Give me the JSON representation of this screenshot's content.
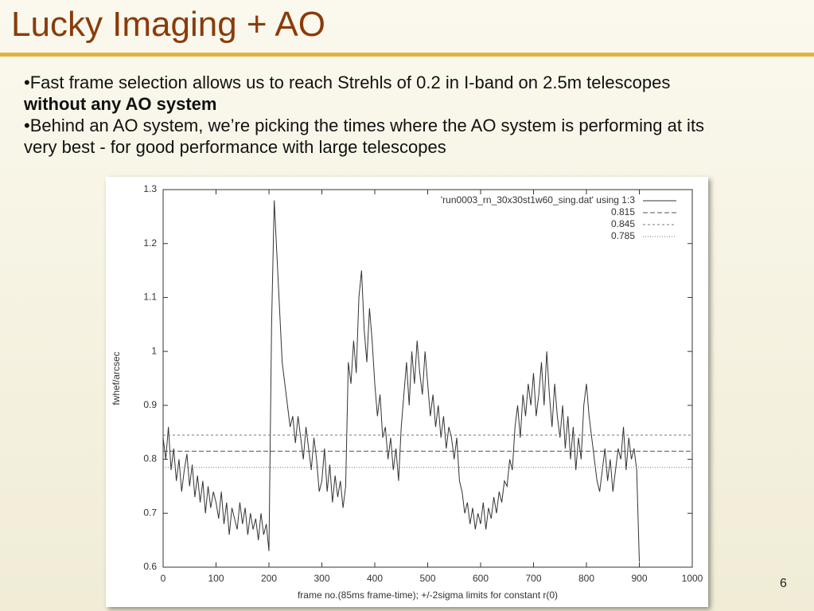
{
  "slide": {
    "title": "Lucky Imaging + AO",
    "page_number": "6",
    "bullets": [
      {
        "text": "Fast frame selection allows us to reach Strehls of 0.2 in I-band on 2.5m telescopes ",
        "bold": "without any AO system"
      },
      {
        "text": "Behind an AO system, we’re picking the times where the AO system is performing at its very best - for good performance with large telescopes"
      }
    ]
  },
  "chart_data": {
    "type": "line",
    "xlabel": "frame no.(85ms frame-time); +/-2sigma limits for constant r(0)",
    "ylabel": "fwhef/arcsec",
    "xlim": [
      0,
      1000
    ],
    "ylim": [
      0.6,
      1.3
    ],
    "xticks": [
      0,
      100,
      200,
      300,
      400,
      500,
      600,
      700,
      800,
      900,
      1000
    ],
    "yticks": [
      0.6,
      0.7,
      0.8,
      0.9,
      1,
      1.1,
      1.2,
      1.3
    ],
    "x": [
      0,
      5,
      10,
      15,
      20,
      25,
      30,
      35,
      40,
      45,
      50,
      55,
      60,
      65,
      70,
      75,
      80,
      85,
      90,
      95,
      100,
      105,
      110,
      115,
      120,
      125,
      130,
      135,
      140,
      145,
      150,
      155,
      160,
      165,
      170,
      175,
      180,
      185,
      190,
      195,
      200,
      205,
      210,
      215,
      220,
      225,
      230,
      235,
      240,
      245,
      250,
      255,
      260,
      265,
      270,
      275,
      280,
      285,
      290,
      295,
      300,
      305,
      310,
      315,
      320,
      325,
      330,
      335,
      340,
      345,
      350,
      355,
      360,
      365,
      370,
      375,
      380,
      385,
      390,
      395,
      400,
      405,
      410,
      415,
      420,
      425,
      430,
      435,
      440,
      445,
      450,
      455,
      460,
      465,
      470,
      475,
      480,
      485,
      490,
      495,
      500,
      505,
      510,
      515,
      520,
      525,
      530,
      535,
      540,
      545,
      550,
      555,
      560,
      565,
      570,
      575,
      580,
      585,
      590,
      595,
      600,
      605,
      610,
      615,
      620,
      625,
      630,
      635,
      640,
      645,
      650,
      655,
      660,
      665,
      670,
      675,
      680,
      685,
      690,
      695,
      700,
      705,
      710,
      715,
      720,
      725,
      730,
      735,
      740,
      745,
      750,
      755,
      760,
      765,
      770,
      775,
      780,
      785,
      790,
      795,
      800,
      805,
      810,
      815,
      820,
      825,
      830,
      835,
      840,
      845,
      850,
      855,
      860,
      865,
      870,
      875,
      880,
      885,
      890,
      895,
      900
    ],
    "series": [
      {
        "name": "'run0003_rn_30x30st1w60_sing.dat' using 1:3",
        "color": "#333333",
        "values": [
          0.84,
          0.8,
          0.86,
          0.78,
          0.82,
          0.76,
          0.8,
          0.74,
          0.78,
          0.81,
          0.75,
          0.79,
          0.73,
          0.77,
          0.72,
          0.76,
          0.7,
          0.75,
          0.71,
          0.74,
          0.72,
          0.69,
          0.74,
          0.68,
          0.72,
          0.66,
          0.71,
          0.69,
          0.67,
          0.72,
          0.68,
          0.71,
          0.66,
          0.7,
          0.67,
          0.69,
          0.65,
          0.7,
          0.66,
          0.68,
          0.63,
          1.05,
          1.28,
          1.18,
          1.08,
          0.98,
          0.94,
          0.9,
          0.86,
          0.88,
          0.83,
          0.88,
          0.84,
          0.8,
          0.86,
          0.82,
          0.78,
          0.84,
          0.8,
          0.74,
          0.76,
          0.82,
          0.74,
          0.79,
          0.72,
          0.77,
          0.73,
          0.76,
          0.71,
          0.75,
          0.98,
          0.94,
          1.02,
          0.96,
          1.1,
          1.15,
          1.04,
          0.98,
          1.08,
          1.02,
          0.94,
          0.88,
          0.92,
          0.84,
          0.86,
          0.8,
          0.84,
          0.78,
          0.82,
          0.76,
          0.86,
          0.92,
          0.98,
          0.9,
          1.0,
          0.94,
          1.02,
          0.96,
          0.92,
          1.0,
          0.94,
          0.88,
          0.92,
          0.86,
          0.9,
          0.84,
          0.88,
          0.82,
          0.86,
          0.84,
          0.8,
          0.84,
          0.76,
          0.74,
          0.7,
          0.72,
          0.68,
          0.71,
          0.67,
          0.7,
          0.68,
          0.72,
          0.67,
          0.71,
          0.69,
          0.73,
          0.7,
          0.74,
          0.72,
          0.76,
          0.75,
          0.8,
          0.78,
          0.86,
          0.9,
          0.84,
          0.92,
          0.88,
          0.94,
          0.9,
          0.96,
          0.88,
          0.92,
          0.98,
          0.9,
          1.0,
          0.92,
          0.86,
          0.94,
          0.88,
          0.84,
          0.9,
          0.82,
          0.88,
          0.8,
          0.86,
          0.78,
          0.84,
          0.8,
          0.9,
          0.94,
          0.88,
          0.84,
          0.8,
          0.76,
          0.74,
          0.78,
          0.82,
          0.76,
          0.8,
          0.74,
          0.78,
          0.82,
          0.8,
          0.86,
          0.78,
          0.84,
          0.8,
          0.82,
          0.78,
          0.61
        ]
      }
    ],
    "reference_lines": [
      {
        "name": "0.815",
        "value": 0.815,
        "dash": "6,3",
        "color": "#555555"
      },
      {
        "name": "0.845",
        "value": 0.845,
        "dash": "3,3",
        "color": "#777777"
      },
      {
        "name": "0.785",
        "value": 0.785,
        "dash": "1,2",
        "color": "#777777"
      }
    ]
  }
}
